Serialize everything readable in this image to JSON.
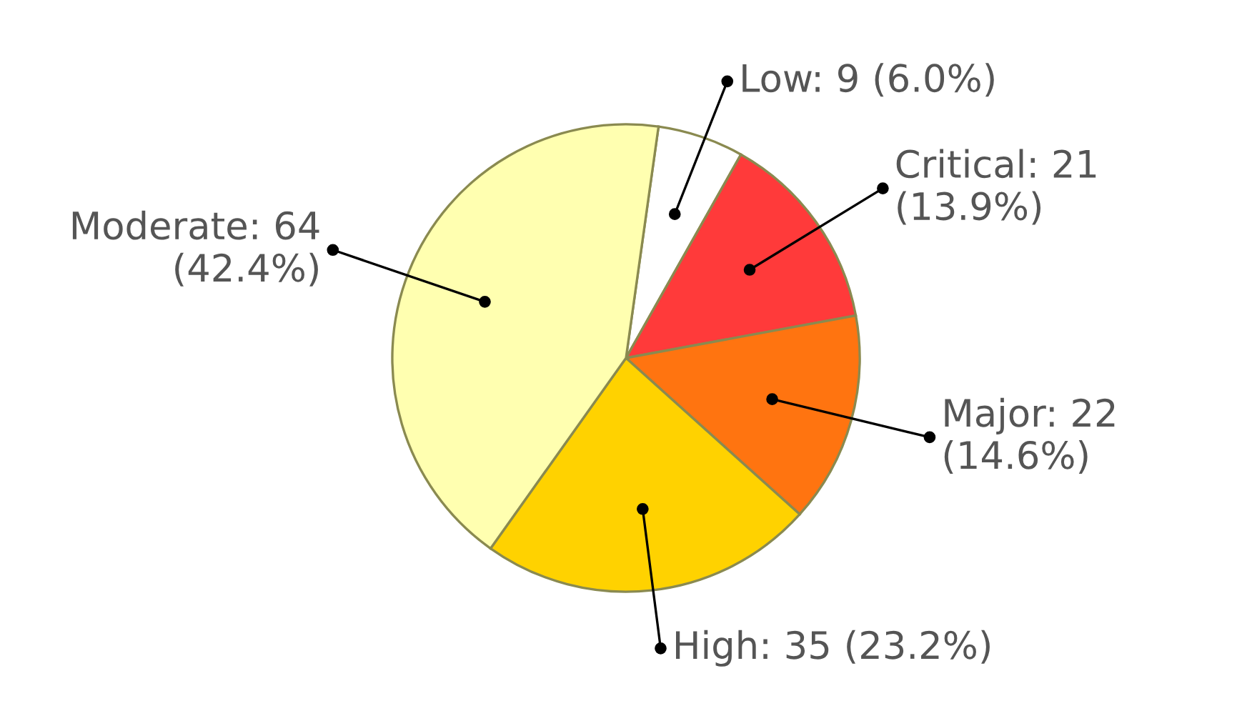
{
  "chart_data": {
    "type": "pie",
    "categories": [
      "Low",
      "Critical",
      "Major",
      "High",
      "Moderate"
    ],
    "values": [
      9,
      21,
      22,
      35,
      64
    ],
    "value_labels": [
      "9 (6.0%)",
      "21\n(13.9%)",
      "22\n(14.6%)",
      "35 (23.2%)",
      "64\n(42.4%)"
    ],
    "colors": [
      "#ffffff",
      "#ff3a3a",
      "#ff7410",
      "#ffd200",
      "#ffffb0"
    ]
  }
}
